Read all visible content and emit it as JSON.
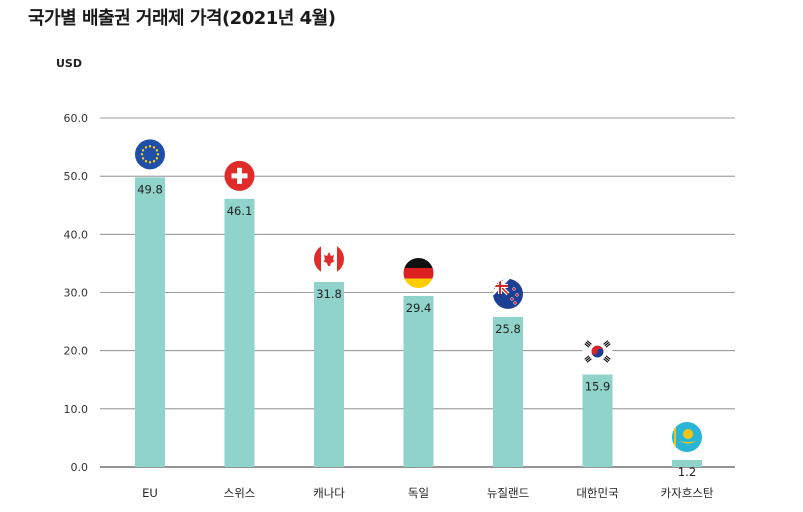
{
  "title": "국가별 배출권 거래제 가격(2021년 4월)",
  "unit": "USD",
  "colors": {
    "bar": "#8fd3ca",
    "grid": "#7f7f7f",
    "axis": "#555555"
  },
  "chart_data": {
    "type": "bar",
    "title": "국가별 배출권 거래제 가격(2021년 4월)",
    "ylabel": "USD",
    "xlabel": "",
    "ylim": [
      0,
      60
    ],
    "yticks": [
      "0.0",
      "10.0",
      "20.0",
      "30.0",
      "40.0",
      "50.0",
      "60.0"
    ],
    "grid": true,
    "categories": [
      "EU",
      "스위스",
      "캐나다",
      "독일",
      "뉴질랜드",
      "대한민국",
      "카자흐스탄"
    ],
    "values": [
      49.8,
      46.1,
      31.8,
      29.4,
      25.8,
      15.9,
      1.2
    ],
    "value_labels": [
      "49.8",
      "46.1",
      "31.8",
      "29.4",
      "25.8",
      "15.9",
      "1.2"
    ],
    "flags": [
      "eu-flag-icon",
      "switzerland-flag-icon",
      "canada-flag-icon",
      "germany-flag-icon",
      "new-zealand-flag-icon",
      "south-korea-flag-icon",
      "kazakhstan-flag-icon"
    ]
  }
}
